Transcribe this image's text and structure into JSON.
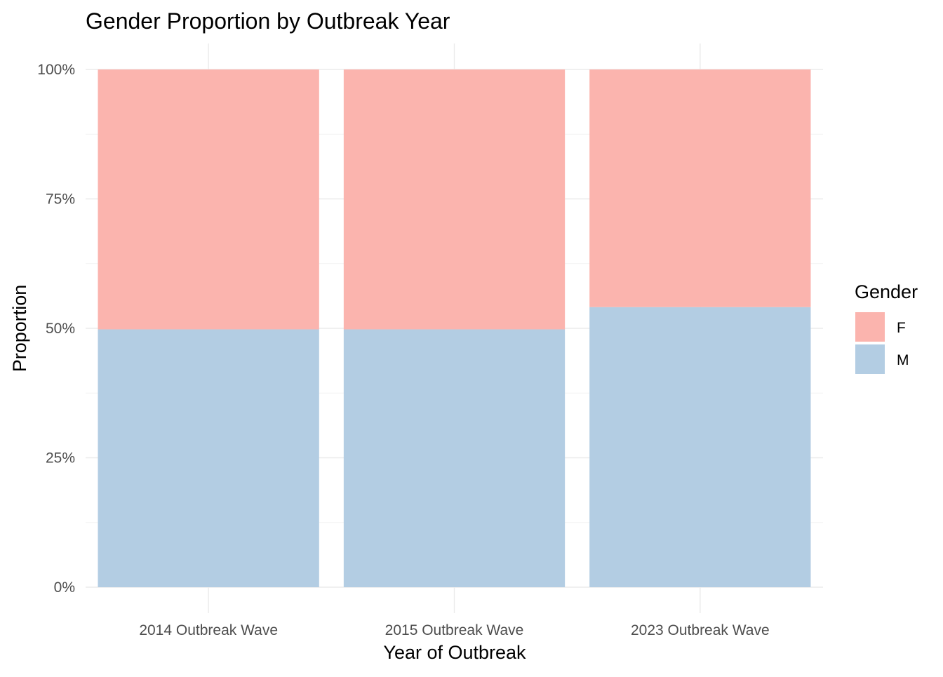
{
  "chart_data": {
    "type": "bar",
    "stacked": "fill",
    "title": "Gender Proportion by Outbreak Year",
    "xlabel": "Year of Outbreak",
    "ylabel": "Proportion",
    "categories": [
      "2014 Outbreak Wave",
      "2015 Outbreak Wave",
      "2023 Outbreak Wave"
    ],
    "series": [
      {
        "name": "M",
        "values": [
          0.498,
          0.498,
          0.541
        ],
        "color": "#B3CDE3"
      },
      {
        "name": "F",
        "values": [
          0.502,
          0.502,
          0.459
        ],
        "color": "#FBB4AE"
      }
    ],
    "ylim": [
      0,
      1
    ],
    "yticks": [
      0,
      0.25,
      0.5,
      0.75,
      1
    ],
    "ytick_labels": [
      "0%",
      "25%",
      "50%",
      "75%",
      "100%"
    ],
    "grid": true,
    "legend": {
      "title": "Gender",
      "placement": "right",
      "entries": [
        {
          "label": "F",
          "color": "#FBB4AE"
        },
        {
          "label": "M",
          "color": "#B3CDE3"
        }
      ]
    }
  }
}
